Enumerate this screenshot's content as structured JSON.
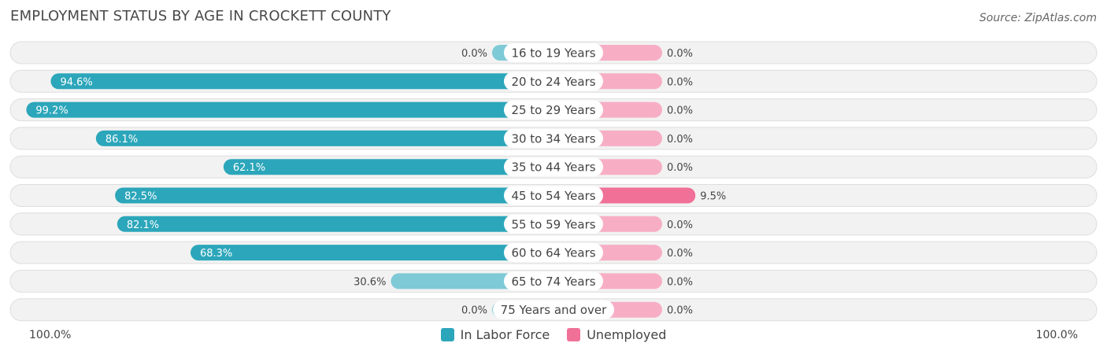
{
  "header": {
    "title": "EMPLOYMENT STATUS BY AGE IN CROCKETT COUNTY",
    "source": "Source: ZipAtlas.com"
  },
  "colors": {
    "labor_strong": "#2ca6ba",
    "labor_light": "#7ecad6",
    "unemployed_strong": "#f07097",
    "unemployed_light": "#f7aec5",
    "row_bg": "#f2f2f2",
    "row_border": "#dedede"
  },
  "chart_data": {
    "type": "bar",
    "orientation": "horizontal-diverging",
    "title": "EMPLOYMENT STATUS BY AGE IN CROCKETT COUNTY",
    "categories": [
      "16 to 19 Years",
      "20 to 24 Years",
      "25 to 29 Years",
      "30 to 34 Years",
      "35 to 44 Years",
      "45 to 54 Years",
      "55 to 59 Years",
      "60 to 64 Years",
      "65 to 74 Years",
      "75 Years and over"
    ],
    "series": [
      {
        "name": "In Labor Force",
        "values": [
          0.0,
          94.6,
          99.2,
          86.1,
          62.1,
          82.5,
          82.1,
          68.3,
          30.6,
          0.0
        ]
      },
      {
        "name": "Unemployed",
        "values": [
          0.0,
          0.0,
          0.0,
          0.0,
          0.0,
          9.5,
          0.0,
          0.0,
          0.0,
          0.0
        ]
      }
    ],
    "value_labels": {
      "labor": [
        "0.0%",
        "94.6%",
        "99.2%",
        "86.1%",
        "62.1%",
        "82.5%",
        "82.1%",
        "68.3%",
        "30.6%",
        "0.0%"
      ],
      "unemployed": [
        "0.0%",
        "0.0%",
        "0.0%",
        "0.0%",
        "0.0%",
        "9.5%",
        "0.0%",
        "0.0%",
        "0.0%",
        "0.0%"
      ]
    },
    "xlim": [
      -100,
      100
    ],
    "axis_labels": {
      "left": "100.0%",
      "right": "100.0%"
    },
    "legend": {
      "position": "bottom-center",
      "entries": [
        "In Labor Force",
        "Unemployed"
      ]
    }
  }
}
